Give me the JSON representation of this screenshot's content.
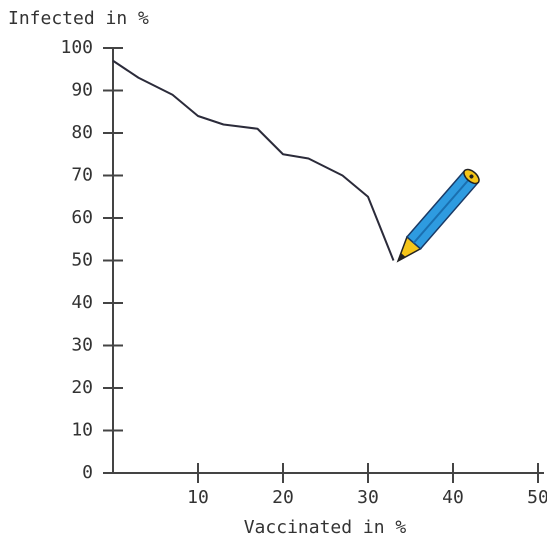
{
  "chart_data": {
    "type": "line",
    "y_label": "Infected in %",
    "x_label": "Vaccinated in %",
    "x": [
      0,
      3,
      7,
      10,
      13,
      17,
      20,
      23,
      27,
      30,
      33
    ],
    "series": [
      {
        "color": "#2b2b3a",
        "values": [
          97,
          93,
          89,
          84,
          82,
          81,
          75,
          74,
          70,
          65,
          50
        ]
      }
    ],
    "xlim": [
      0,
      50
    ],
    "xticks": [
      10,
      20,
      30,
      40,
      50
    ],
    "ylim": [
      0,
      100
    ],
    "yticks": [
      0,
      10,
      20,
      30,
      40,
      50,
      60,
      70,
      80,
      90,
      100
    ]
  }
}
